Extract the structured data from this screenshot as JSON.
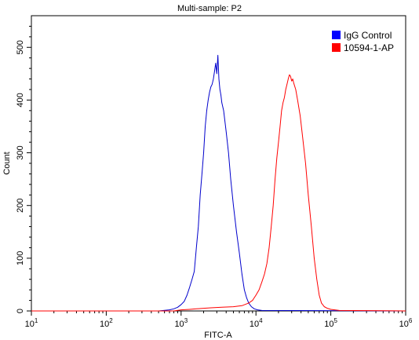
{
  "chart_data": {
    "type": "line",
    "title": "Multi-sample: P2",
    "xlabel": "FITC-A",
    "ylabel": "Count",
    "x_scale": "log10",
    "x_ticks": [
      {
        "exp": 1
      },
      {
        "exp": 2
      },
      {
        "exp": 3
      },
      {
        "exp": 4
      },
      {
        "exp": 5
      },
      {
        "exp": 6
      }
    ],
    "xlim": [
      10,
      1000000
    ],
    "ylim": [
      0,
      560
    ],
    "y_ticks": [
      "0",
      "100",
      "200",
      "300",
      "400",
      "500"
    ],
    "grid": false,
    "legend_position": "top-right",
    "series": [
      {
        "name": "IgG Control",
        "color": "#0000cc",
        "points": [
          [
            10,
            0
          ],
          [
            500,
            0
          ],
          [
            700,
            2
          ],
          [
            800,
            4
          ],
          [
            900,
            7
          ],
          [
            1000,
            12
          ],
          [
            1100,
            18
          ],
          [
            1200,
            30
          ],
          [
            1300,
            45
          ],
          [
            1400,
            60
          ],
          [
            1500,
            75
          ],
          [
            1600,
            120
          ],
          [
            1700,
            160
          ],
          [
            1800,
            220
          ],
          [
            1900,
            260
          ],
          [
            2000,
            300
          ],
          [
            2100,
            350
          ],
          [
            2200,
            380
          ],
          [
            2300,
            400
          ],
          [
            2400,
            415
          ],
          [
            2500,
            425
          ],
          [
            2600,
            430
          ],
          [
            2700,
            440
          ],
          [
            2800,
            455
          ],
          [
            2900,
            470
          ],
          [
            3000,
            450
          ],
          [
            3100,
            485
          ],
          [
            3200,
            440
          ],
          [
            3300,
            420
          ],
          [
            3400,
            410
          ],
          [
            3500,
            395
          ],
          [
            3700,
            380
          ],
          [
            4000,
            340
          ],
          [
            4300,
            300
          ],
          [
            4600,
            250
          ],
          [
            5000,
            200
          ],
          [
            5500,
            150
          ],
          [
            6000,
            110
          ],
          [
            6500,
            70
          ],
          [
            7000,
            40
          ],
          [
            7500,
            25
          ],
          [
            8000,
            15
          ],
          [
            8700,
            8
          ],
          [
            9500,
            4
          ],
          [
            10500,
            2
          ],
          [
            12000,
            1
          ],
          [
            1000000,
            0
          ]
        ]
      },
      {
        "name": "10594-1-AP",
        "color": "#ff0000",
        "points": [
          [
            10,
            0
          ],
          [
            800,
            0
          ],
          [
            1000,
            2
          ],
          [
            1300,
            3
          ],
          [
            1600,
            4
          ],
          [
            2000,
            5
          ],
          [
            2500,
            6
          ],
          [
            3500,
            7
          ],
          [
            5000,
            8
          ],
          [
            6500,
            10
          ],
          [
            8000,
            15
          ],
          [
            9000,
            20
          ],
          [
            10000,
            30
          ],
          [
            11000,
            40
          ],
          [
            12000,
            55
          ],
          [
            13000,
            70
          ],
          [
            14000,
            90
          ],
          [
            15000,
            120
          ],
          [
            16000,
            160
          ],
          [
            17000,
            200
          ],
          [
            18000,
            250
          ],
          [
            19000,
            290
          ],
          [
            20000,
            320
          ],
          [
            21000,
            350
          ],
          [
            22000,
            380
          ],
          [
            23000,
            395
          ],
          [
            24000,
            405
          ],
          [
            25000,
            420
          ],
          [
            26000,
            430
          ],
          [
            27000,
            440
          ],
          [
            28000,
            448
          ],
          [
            29000,
            445
          ],
          [
            30000,
            436
          ],
          [
            31000,
            440
          ],
          [
            32000,
            432
          ],
          [
            34000,
            420
          ],
          [
            36000,
            400
          ],
          [
            39000,
            370
          ],
          [
            42000,
            330
          ],
          [
            46000,
            280
          ],
          [
            50000,
            220
          ],
          [
            55000,
            160
          ],
          [
            60000,
            100
          ],
          [
            65000,
            60
          ],
          [
            70000,
            30
          ],
          [
            75000,
            15
          ],
          [
            82000,
            8
          ],
          [
            90000,
            5
          ],
          [
            100000,
            3
          ],
          [
            130000,
            1
          ],
          [
            1000000,
            0
          ]
        ]
      }
    ]
  }
}
